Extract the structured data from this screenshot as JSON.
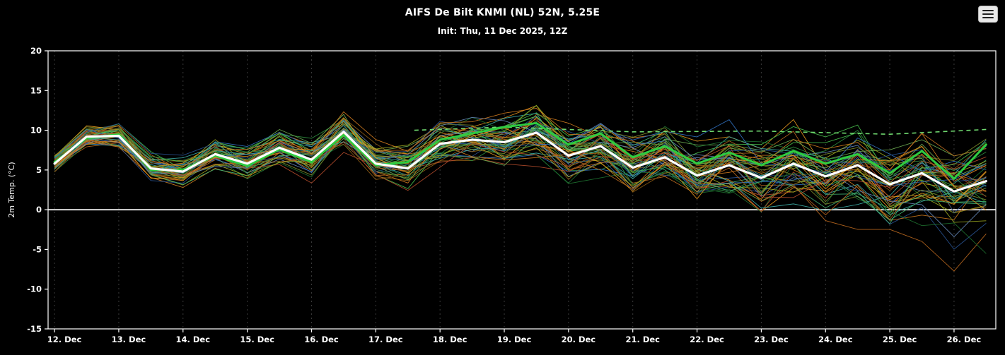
{
  "header": {
    "title": "AIFS De Bilt KNMI (NL) 52N, 5.25E",
    "init_line": "Init: Thu, 11 Dec 2025, 12Z"
  },
  "chart_data": {
    "type": "line",
    "title": "AIFS De Bilt KNMI (NL) 52N, 5.25E",
    "subtitle": "Init: Thu, 11 Dec 2025, 12Z",
    "ylabel": "2m Temp. (°C)",
    "ylim": [
      -15,
      20
    ],
    "yticks": [
      -15,
      -10,
      -5,
      0,
      5,
      10,
      15,
      20
    ],
    "x_domain": [
      -0.1,
      14.65
    ],
    "time_step_days": 0.5,
    "x_start_label": "12 Dec 00Z",
    "xticks": [
      {
        "day": 0,
        "label": "12. Dec"
      },
      {
        "day": 1,
        "label": "13. Dec"
      },
      {
        "day": 2,
        "label": "14. Dec"
      },
      {
        "day": 3,
        "label": "15. Dec"
      },
      {
        "day": 4,
        "label": "16. Dec"
      },
      {
        "day": 5,
        "label": "17. Dec"
      },
      {
        "day": 6,
        "label": "18. Dec"
      },
      {
        "day": 7,
        "label": "19. Dec"
      },
      {
        "day": 8,
        "label": "20. Dec"
      },
      {
        "day": 9,
        "label": "21. Dec"
      },
      {
        "day": 10,
        "label": "22. Dec"
      },
      {
        "day": 11,
        "label": "23. Dec"
      },
      {
        "day": 12,
        "label": "24. Dec"
      },
      {
        "day": 13,
        "label": "25. Dec"
      },
      {
        "day": 14,
        "label": "26. Dec"
      }
    ],
    "zero_line": {
      "value": 0,
      "color": "#d9d9d9",
      "width": 2
    },
    "grid": {
      "vertical_dashed": true,
      "color": "#3a3a3a"
    },
    "series": [
      {
        "name": "ensemble_mean",
        "color": "#ffffff",
        "width": 3.2,
        "values": [
          5.8,
          9.2,
          9.3,
          5.2,
          4.8,
          7.0,
          5.8,
          7.8,
          6.3,
          9.8,
          5.8,
          5.2,
          8.3,
          8.8,
          8.5,
          9.7,
          6.8,
          8.0,
          5.3,
          6.6,
          4.3,
          5.6,
          4.0,
          5.8,
          4.2,
          5.6,
          3.2,
          4.6,
          2.3,
          3.6
        ]
      },
      {
        "name": "control_run",
        "color": "#2ecc40",
        "width": 3,
        "values": [
          6.0,
          9.0,
          9.5,
          5.0,
          5.0,
          6.8,
          5.5,
          7.6,
          6.0,
          9.4,
          5.6,
          6.0,
          8.8,
          9.6,
          10.4,
          10.9,
          8.2,
          9.6,
          6.6,
          8.0,
          5.8,
          7.2,
          5.6,
          7.4,
          5.8,
          7.0,
          4.6,
          7.4,
          3.9,
          8.2
        ]
      }
    ],
    "reference_dashed": {
      "name": "reference_dashed",
      "color": "#6fd96f",
      "width": 1.6,
      "dash": "6 5",
      "points": [
        [
          5.6,
          10.0
        ],
        [
          7.0,
          10.4
        ],
        [
          9.0,
          9.8
        ],
        [
          11.0,
          9.9
        ],
        [
          13.0,
          9.5
        ],
        [
          14.5,
          10.1
        ]
      ]
    },
    "ensemble": {
      "count": 52,
      "line_width": 0.9,
      "spread_start": 0.9,
      "spread_end": 3.5,
      "min_seen": -9,
      "max_seen": 14,
      "colors": [
        "#c8761e",
        "#e0941c",
        "#8a5a13",
        "#b5651d",
        "#2e8b3d",
        "#45b649",
        "#1e6e2e",
        "#6aa84f",
        "#9aa61f",
        "#2f6fbd",
        "#27508d",
        "#3aa7a0",
        "#5f7fae",
        "#3fae6e",
        "#b04a2a",
        "#7a8a2a"
      ]
    }
  }
}
